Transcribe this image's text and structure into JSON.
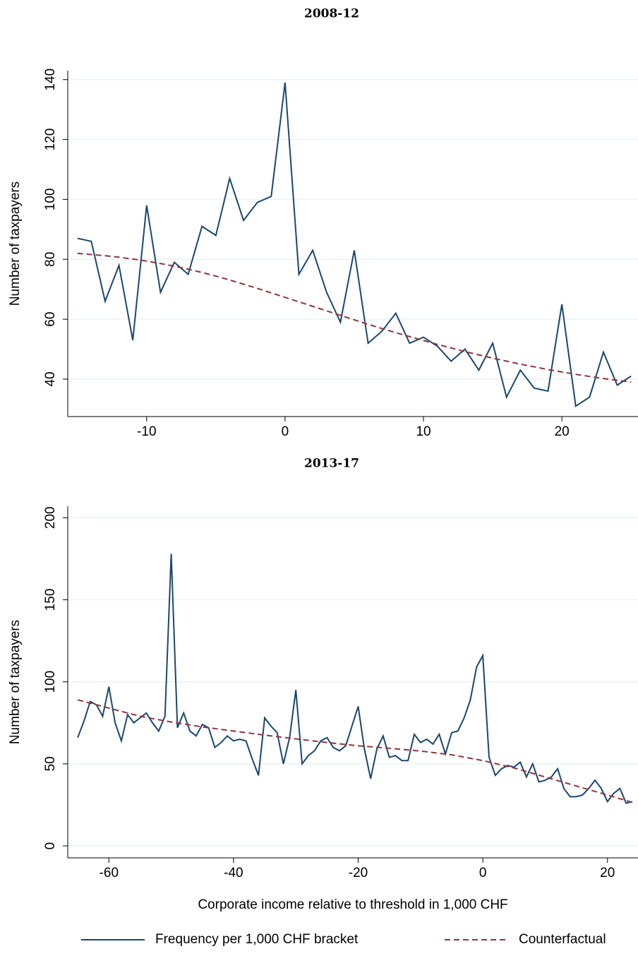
{
  "chart_data": [
    {
      "type": "line",
      "title": "2008-12",
      "y_label": "Number of taxpayers",
      "x": [
        -15,
        -14,
        -13,
        -12,
        -11,
        -10,
        -9,
        -8,
        -7,
        -6,
        -5,
        -4,
        -3,
        -2,
        -1,
        0,
        1,
        2,
        3,
        4,
        5,
        6,
        7,
        8,
        9,
        10,
        11,
        12,
        13,
        14,
        15,
        16,
        17,
        18,
        19,
        20,
        21,
        22,
        23,
        24,
        25
      ],
      "series": [
        {
          "color": "#1a476f",
          "dash": false,
          "values": [
            87,
            86,
            66,
            78,
            53,
            98,
            69,
            79,
            75,
            91,
            88,
            107,
            93,
            99,
            101,
            139,
            75,
            83,
            69,
            59,
            83,
            52,
            56,
            62,
            52,
            54,
            51,
            46,
            50,
            43,
            52,
            34,
            43,
            37,
            36,
            65,
            31,
            34,
            49,
            38,
            41
          ]
        },
        {
          "color": "#90353b",
          "dash": true,
          "values": [
            82,
            81.6,
            81.2,
            80.7,
            80.1,
            79.4,
            78.6,
            77.7,
            76.7,
            75.6,
            74.4,
            73.1,
            71.7,
            70.3,
            68.8,
            67.3,
            65.8,
            64.3,
            62.8,
            61.3,
            59.8,
            58.3,
            56.9,
            55.5,
            54.2,
            52.9,
            51.6,
            50.4,
            49.2,
            48.1,
            47,
            46,
            45,
            44.1,
            43.2,
            42.4,
            41.6,
            40.9,
            40.2,
            39.6,
            39
          ]
        }
      ],
      "xlim": [
        -15.7,
        25.5
      ],
      "xticks": [
        -10,
        0,
        10,
        20
      ],
      "ylim": [
        27.5,
        143
      ],
      "yticks": [
        40,
        60,
        80,
        100,
        120,
        140
      ],
      "grid": true
    },
    {
      "type": "line",
      "title": "2013-17",
      "y_label": "Number of taxpayers",
      "x_label": "Corporate income relative to threshold in 1,000 CHF",
      "x": [
        -65,
        -64,
        -63,
        -62,
        -61,
        -60,
        -59,
        -58,
        -57,
        -56,
        -55,
        -54,
        -53,
        -52,
        -51,
        -50,
        -49,
        -48,
        -47,
        -46,
        -45,
        -44,
        -43,
        -42,
        -41,
        -40,
        -39,
        -38,
        -37,
        -36,
        -35,
        -34,
        -33,
        -32,
        -31,
        -30,
        -29,
        -28,
        -27,
        -26,
        -25,
        -24,
        -23,
        -22,
        -21,
        -20,
        -19,
        -18,
        -17,
        -16,
        -15,
        -14,
        -13,
        -12,
        -11,
        -10,
        -9,
        -8,
        -7,
        -6,
        -5,
        -4,
        -3,
        -2,
        -1,
        0,
        1,
        2,
        3,
        4,
        5,
        6,
        7,
        8,
        9,
        10,
        11,
        12,
        13,
        14,
        15,
        16,
        17,
        18,
        19,
        20,
        21,
        22,
        23,
        24
      ],
      "series": [
        {
          "name": "Frequency per 1,000 CHF bracket",
          "color": "#1a476f",
          "dash": false,
          "values": [
            66,
            76,
            88,
            86,
            79,
            97,
            75,
            64,
            80,
            75,
            78,
            81,
            75,
            70,
            79,
            178,
            72,
            81,
            70,
            67,
            74,
            72,
            60,
            63,
            67,
            64,
            65,
            64,
            53,
            43,
            78,
            73,
            69,
            50,
            66,
            95,
            50,
            55,
            58,
            64,
            66,
            60,
            58,
            61,
            73,
            85,
            59,
            41,
            59,
            67,
            54,
            55,
            52,
            52,
            68,
            63,
            65,
            62,
            68,
            56,
            69,
            70,
            78,
            89,
            109,
            116,
            54,
            43,
            47,
            49,
            48,
            51,
            42,
            50,
            39,
            40,
            42,
            47,
            35,
            30,
            30,
            31,
            35,
            40,
            35,
            27,
            32,
            35,
            26,
            27
          ]
        },
        {
          "name": "Counterfactual",
          "color": "#90353b",
          "dash": true,
          "x": [
            -65,
            -60,
            -55,
            -50,
            -45,
            -40,
            -35,
            -30,
            -25,
            -20,
            -15,
            -10,
            -5,
            0,
            5,
            10,
            15,
            20,
            24
          ],
          "values": [
            89,
            84,
            79,
            75.5,
            72.5,
            70,
            67.5,
            65.2,
            63,
            61,
            59.5,
            57.8,
            55.5,
            52,
            47.5,
            42,
            36.5,
            31,
            26.5
          ]
        }
      ],
      "xlim": [
        -66.6,
        24.9
      ],
      "xticks": [
        -60,
        -40,
        -20,
        0,
        20
      ],
      "ylim": [
        -7.3,
        207
      ],
      "yticks": [
        0,
        50,
        100,
        150,
        200
      ],
      "grid": true,
      "legend": "bottom"
    }
  ]
}
